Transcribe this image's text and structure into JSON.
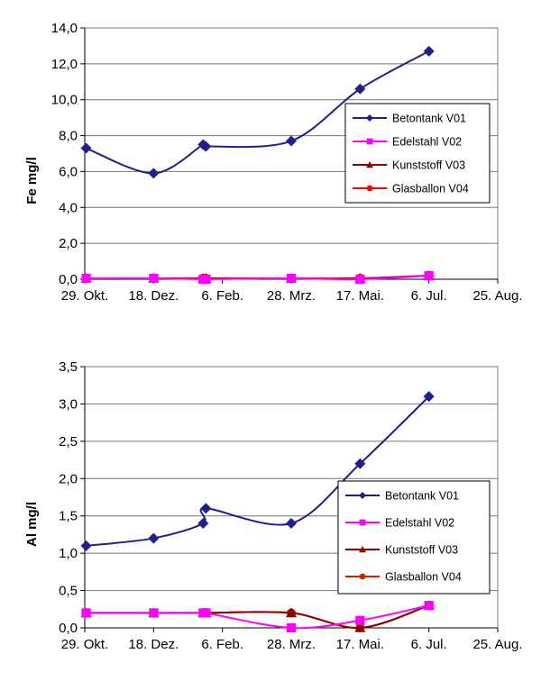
{
  "chart_data": [
    {
      "type": "line",
      "ylabel": "Fe mg/l",
      "ylim": [
        0,
        14
      ],
      "ytick_labels": [
        "0,0",
        "2,0",
        "4,0",
        "6,0",
        "8,0",
        "10,0",
        "12,0",
        "14,0"
      ],
      "xlim": [
        "2004-10-29",
        "2005-08-25"
      ],
      "xtick_labels": [
        "29. Okt.",
        "18. Dez.",
        "6. Feb.",
        "28. Mrz.",
        "17. Mai.",
        "6. Jul.",
        "25. Aug."
      ],
      "grid": true,
      "legend": "right",
      "series": [
        {
          "name": "Betontank V01",
          "color": "#1f1f8f",
          "marker": "diamond",
          "x": [
            "2004-10-30",
            "2004-12-18",
            "2005-01-23",
            "2005-01-25",
            "2005-03-28",
            "2005-05-17",
            "2005-07-06"
          ],
          "y": [
            7.3,
            5.9,
            7.5,
            7.4,
            7.7,
            10.6,
            12.7
          ]
        },
        {
          "name": "Edelstahl V02",
          "color": "#ff00ff",
          "marker": "square",
          "x": [
            "2004-10-30",
            "2004-12-18",
            "2005-01-23",
            "2005-01-25",
            "2005-03-28",
            "2005-05-17",
            "2005-07-06"
          ],
          "y": [
            0.05,
            0.05,
            0.0,
            0.0,
            0.05,
            0.0,
            0.2
          ]
        },
        {
          "name": "Kunststoff V03",
          "color": "#8b0000",
          "marker": "triangle",
          "x": [
            "2004-10-30",
            "2004-12-18",
            "2005-01-23",
            "2005-01-25",
            "2005-03-28",
            "2005-05-17",
            "2005-07-06"
          ],
          "y": [
            0.05,
            0.05,
            0.05,
            0.05,
            0.05,
            0.05,
            0.2
          ]
        },
        {
          "name": "Glasballon V04",
          "color": "#ff0000",
          "marker": "circle",
          "x": [
            "2004-10-30",
            "2004-12-18",
            "2005-01-23",
            "2005-01-25",
            "2005-03-28",
            "2005-05-17",
            "2005-07-06"
          ],
          "y": [
            0.05,
            0.05,
            0.05,
            0.05,
            0.05,
            0.05,
            0.2
          ]
        }
      ]
    },
    {
      "type": "line",
      "ylabel": "Al mg/l",
      "ylim": [
        0,
        3.5
      ],
      "ytick_labels": [
        "0,0",
        "0,5",
        "1,0",
        "1,5",
        "2,0",
        "2,5",
        "3,0",
        "3,5"
      ],
      "xlim": [
        "2004-10-29",
        "2005-08-25"
      ],
      "xtick_labels": [
        "29. Okt.",
        "18. Dez.",
        "6. Feb.",
        "28. Mrz.",
        "17. Mai.",
        "6. Jul.",
        "25. Aug."
      ],
      "grid": true,
      "legend": "right",
      "series": [
        {
          "name": "Betontank V01",
          "color": "#1f1f8f",
          "marker": "diamond",
          "x": [
            "2004-10-30",
            "2004-12-18",
            "2005-01-23",
            "2005-01-25",
            "2005-03-28",
            "2005-05-17",
            "2005-07-06"
          ],
          "y": [
            1.1,
            1.2,
            1.4,
            1.6,
            1.4,
            2.2,
            3.1
          ]
        },
        {
          "name": "Edelstahl V02",
          "color": "#ff00ff",
          "marker": "square",
          "x": [
            "2004-10-30",
            "2004-12-18",
            "2005-01-23",
            "2005-01-25",
            "2005-03-28",
            "2005-05-17",
            "2005-07-06"
          ],
          "y": [
            0.2,
            0.2,
            0.2,
            0.2,
            0.0,
            0.1,
            0.3
          ]
        },
        {
          "name": "Kunststoff V03",
          "color": "#8b0000",
          "marker": "triangle",
          "x": [
            "2004-10-30",
            "2004-12-18",
            "2005-01-23",
            "2005-01-25",
            "2005-03-28",
            "2005-05-17",
            "2005-07-06"
          ],
          "y": [
            0.2,
            0.2,
            0.2,
            0.2,
            0.2,
            0.0,
            0.3
          ]
        },
        {
          "name": "Glasballon V04",
          "color": "#cc2200",
          "marker": "circle",
          "x": [
            "2004-10-30",
            "2004-12-18",
            "2005-01-23",
            "2005-01-25",
            "2005-03-28",
            "2005-05-17",
            "2005-07-06"
          ],
          "y": [
            0.2,
            0.2,
            0.2,
            0.2,
            0.2,
            0.0,
            0.3
          ]
        }
      ]
    }
  ]
}
